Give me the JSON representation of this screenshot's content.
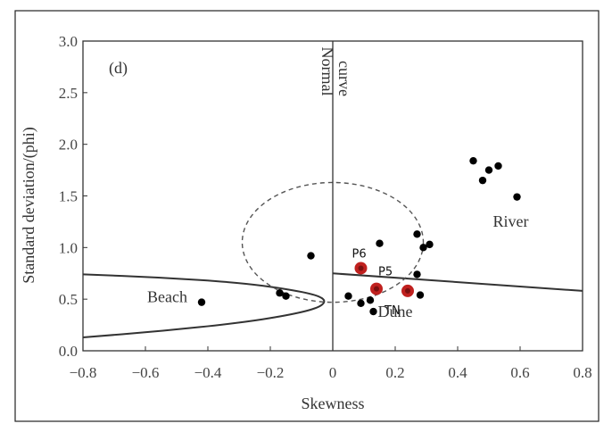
{
  "chart_data": {
    "type": "scatter",
    "panel_label": "(d)",
    "xlabel": "Skewness",
    "ylabel": "Standard deviation/(phi)",
    "xlim": [
      -0.8,
      0.8
    ],
    "ylim": [
      0.0,
      3.0
    ],
    "x_ticks": [
      "−0.8",
      "−0.6",
      "−0.4",
      "−0.2",
      "0",
      "0.2",
      "0.4",
      "0.6",
      "0.8"
    ],
    "x_tick_values": [
      -0.8,
      -0.6,
      -0.4,
      -0.2,
      0,
      0.2,
      0.4,
      0.6,
      0.8
    ],
    "y_ticks": [
      "0.0",
      "0.5",
      "1.0",
      "1.5",
      "2.0",
      "2.5",
      "3.0"
    ],
    "y_tick_values": [
      0.0,
      0.5,
      1.0,
      1.5,
      2.0,
      2.5,
      3.0
    ],
    "grid": false,
    "normal_curve_label": [
      "Normal",
      "curve"
    ],
    "normal_curve_x": 0,
    "region_labels": [
      {
        "text": "Beach",
        "x": -0.53,
        "y": 0.47
      },
      {
        "text": "River",
        "x": 0.57,
        "y": 1.2
      },
      {
        "text": "Dune",
        "x": 0.2,
        "y": 0.33
      }
    ],
    "series": [
      {
        "color": "#000000",
        "points": [
          [
            -0.42,
            0.47
          ],
          [
            -0.17,
            0.56
          ],
          [
            -0.15,
            0.53
          ],
          [
            -0.07,
            0.92
          ],
          [
            0.05,
            0.53
          ],
          [
            0.09,
            0.46
          ],
          [
            0.12,
            0.49
          ],
          [
            0.13,
            0.38
          ],
          [
            0.15,
            1.04
          ],
          [
            0.27,
            0.74
          ],
          [
            0.27,
            1.13
          ],
          [
            0.28,
            0.54
          ],
          [
            0.29,
            1.0
          ],
          [
            0.31,
            1.03
          ],
          [
            0.45,
            1.84
          ],
          [
            0.48,
            1.65
          ],
          [
            0.5,
            1.75
          ],
          [
            0.53,
            1.79
          ],
          [
            0.59,
            1.49
          ]
        ]
      },
      {
        "color": "#c0211f",
        "points": [
          {
            "label": "P6",
            "x": 0.09,
            "y": 0.8
          },
          {
            "label": "P5",
            "x": 0.14,
            "y": 0.6
          },
          {
            "label": "TN",
            "x": 0.24,
            "y": 0.58
          }
        ]
      }
    ],
    "boundaries": {
      "beach_curve": [
        [
          -0.8,
          0.74
        ],
        [
          -0.55,
          0.71
        ],
        [
          -0.3,
          0.66
        ],
        [
          -0.15,
          0.6
        ],
        [
          -0.05,
          0.54
        ],
        [
          -0.02,
          0.48
        ],
        [
          -0.05,
          0.41
        ],
        [
          -0.15,
          0.34
        ],
        [
          -0.3,
          0.27
        ],
        [
          -0.55,
          0.19
        ],
        [
          -0.8,
          0.13
        ]
      ],
      "dune_river_line": [
        [
          0.0,
          0.75
        ],
        [
          0.8,
          0.58
        ]
      ],
      "dashed_ellipse": {
        "cx": 0.0,
        "cy": 1.05,
        "rx": 0.29,
        "ry": 0.58
      }
    }
  }
}
